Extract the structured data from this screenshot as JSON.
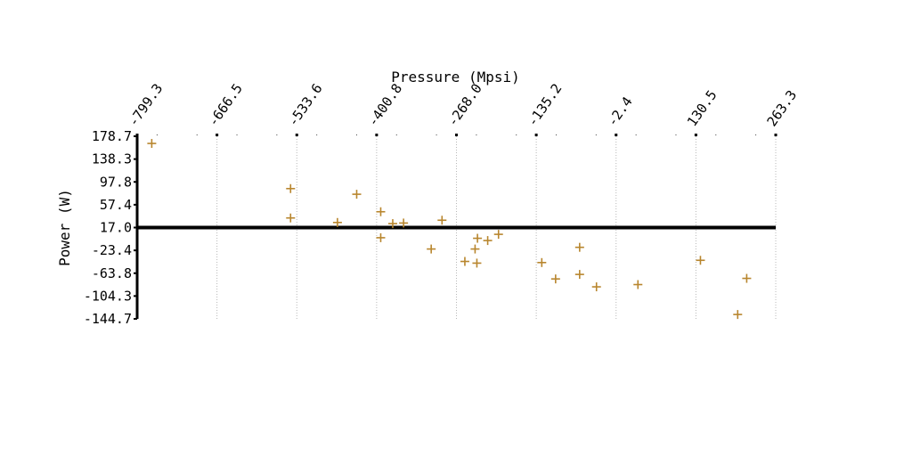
{
  "chart_data": {
    "type": "scatter",
    "title": "",
    "xlabel": "Pressure (Mpsi)",
    "ylabel": "Power (W)",
    "x_axis_position": "top",
    "xlim": [
      -799.3,
      263.3
    ],
    "ylim": [
      -144.7,
      178.7
    ],
    "x_ticks": [
      "-799.3",
      "-666.5",
      "-533.6",
      "-400.8",
      "-268.0",
      "-135.2",
      "-2.4",
      "130.5",
      "263.3"
    ],
    "y_ticks": [
      "178.7",
      "138.3",
      "97.8",
      "57.4",
      "17.0",
      "-23.4",
      "-63.8",
      "-104.3",
      "-144.7"
    ],
    "x_grid": true,
    "y_grid": false,
    "baseline_y": 17.0,
    "marker": "plus",
    "color": "#b8862e",
    "series": [
      {
        "points": [
          {
            "x": -775.0,
            "y": 166.0
          },
          {
            "x": -544.0,
            "y": 86.0
          },
          {
            "x": -544.0,
            "y": 34.0
          },
          {
            "x": -466.0,
            "y": 26.0
          },
          {
            "x": -434.0,
            "y": 76.0
          },
          {
            "x": -394.0,
            "y": 45.0
          },
          {
            "x": -394.0,
            "y": -1.0
          },
          {
            "x": -374.0,
            "y": 24.0
          },
          {
            "x": -356.0,
            "y": 25.0
          },
          {
            "x": -310.0,
            "y": -21.0
          },
          {
            "x": -292.0,
            "y": 30.0
          },
          {
            "x": -254.0,
            "y": -43.0
          },
          {
            "x": -237.0,
            "y": -21.0
          },
          {
            "x": -234.0,
            "y": -46.0
          },
          {
            "x": -233.0,
            "y": -2.0
          },
          {
            "x": -216.0,
            "y": -6.0
          },
          {
            "x": -198.0,
            "y": 5.0
          },
          {
            "x": -126.0,
            "y": -45.0
          },
          {
            "x": -103.0,
            "y": -74.0
          },
          {
            "x": -63.0,
            "y": -18.0
          },
          {
            "x": -63.0,
            "y": -66.0
          },
          {
            "x": -35.0,
            "y": -88.0
          },
          {
            "x": 34.0,
            "y": -84.0
          },
          {
            "x": 138.0,
            "y": -41.0
          },
          {
            "x": 200.0,
            "y": -137.0
          },
          {
            "x": 215.0,
            "y": -73.0
          }
        ]
      }
    ]
  }
}
